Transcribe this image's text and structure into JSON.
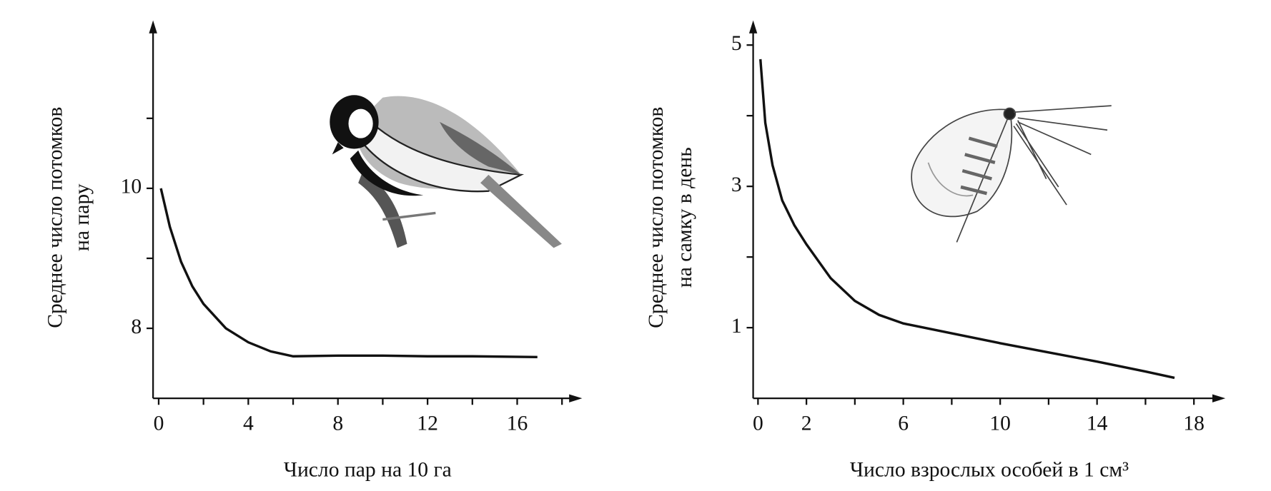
{
  "chart_data": [
    {
      "type": "line",
      "ylabel": [
        "Среднее число потомков",
        "на пару"
      ],
      "xlabel": "Число пар на 10 га",
      "x": [
        0.1,
        0.5,
        1,
        1.5,
        2,
        3,
        4,
        5,
        6,
        8,
        10,
        12,
        14,
        16.9
      ],
      "values": [
        10,
        9.45,
        8.95,
        8.6,
        8.35,
        8.0,
        7.8,
        7.67,
        7.6,
        7.61,
        7.61,
        7.6,
        7.6,
        7.59
      ],
      "color": "#111111",
      "xlim": [
        -0.25,
        18.9
      ],
      "ylim": [
        7,
        12.4
      ],
      "xticks": [
        0,
        4,
        8,
        12,
        16
      ],
      "minor_xticks": [
        2,
        6,
        10,
        14,
        18
      ],
      "yticks": [
        8,
        10
      ],
      "minor_yticks": [
        9,
        11
      ]
    },
    {
      "type": "line",
      "ylabel": [
        "Среднее число потомков",
        "на самку в день"
      ],
      "xlabel": "Число взрослых особей в 1 см³",
      "x": [
        0.1,
        0.3,
        0.6,
        1,
        1.5,
        2,
        3,
        4,
        5,
        6,
        8,
        10,
        12,
        14,
        16,
        17.2
      ],
      "values": [
        4.8,
        3.9,
        3.3,
        2.8,
        2.45,
        2.18,
        1.7,
        1.38,
        1.18,
        1.06,
        0.92,
        0.78,
        0.65,
        0.52,
        0.38,
        0.29
      ],
      "color": "#111111",
      "xlim": [
        -0.2,
        19.3
      ],
      "ylim": [
        0,
        5.35
      ],
      "xticks": [
        0,
        2,
        6,
        10,
        14,
        18
      ],
      "minor_xticks": [
        4,
        8,
        12,
        16
      ],
      "yticks": [
        1,
        3,
        5
      ],
      "minor_yticks": [
        2,
        4
      ]
    }
  ]
}
